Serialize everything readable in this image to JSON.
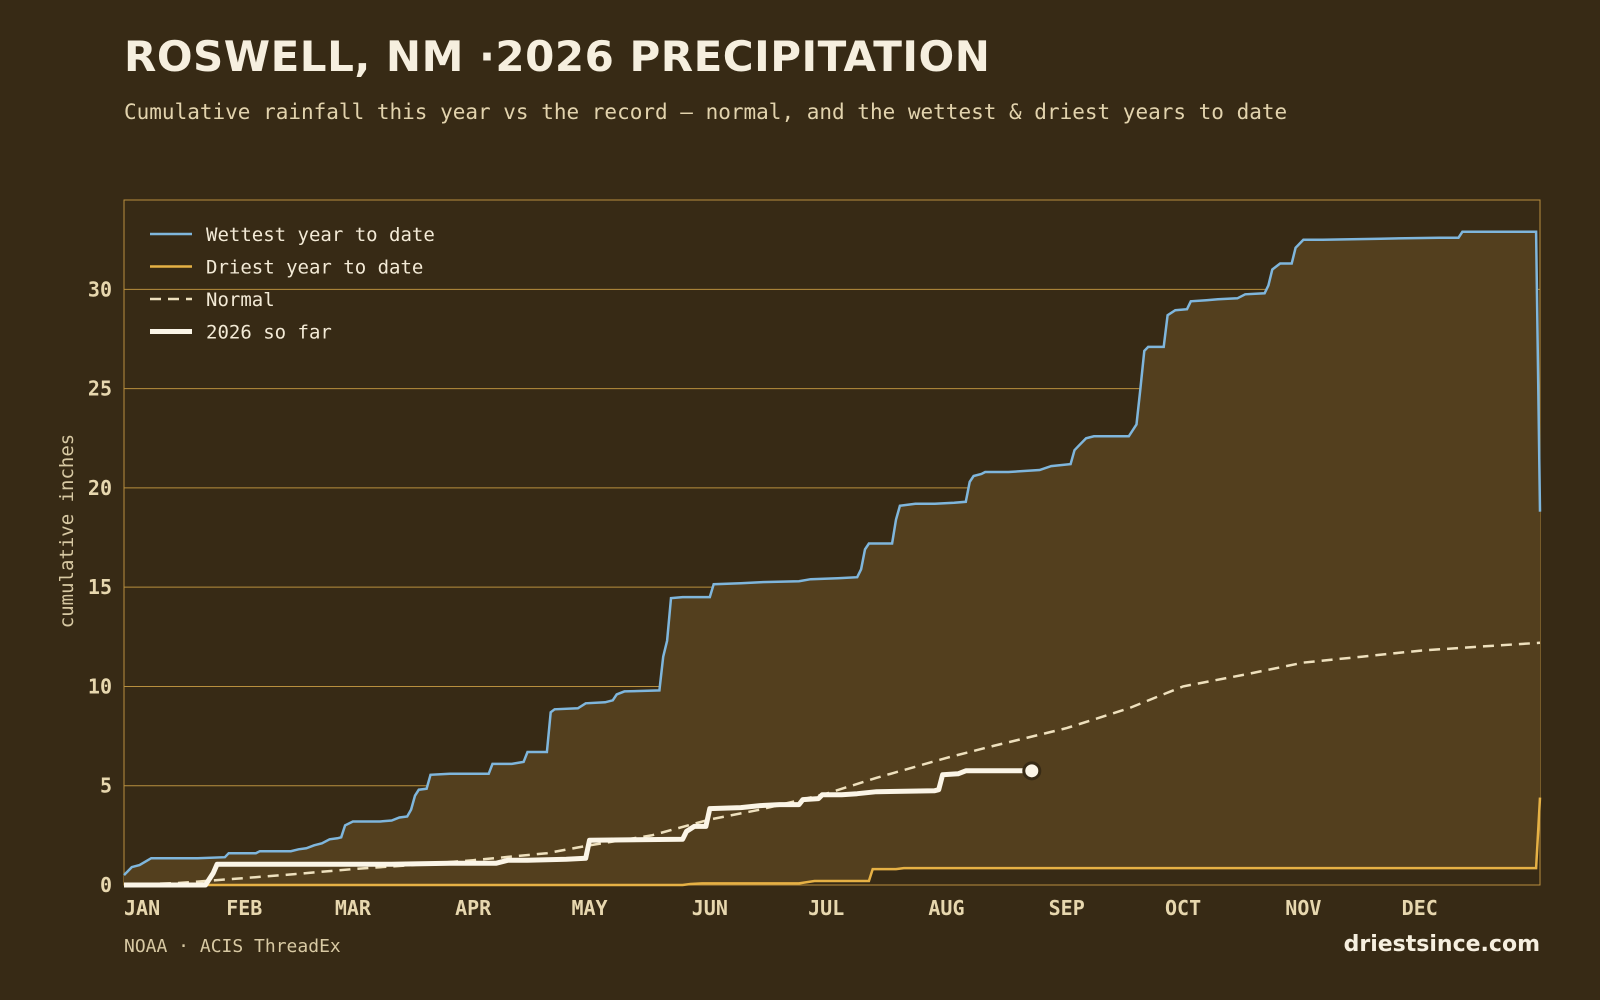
{
  "header": {
    "title": "ROSWELL, NM ·2026 PRECIPITATION",
    "subtitle": "Cumulative rainfall this year vs the record — normal, and the wettest & driest years to date"
  },
  "footer": {
    "source": "NOAA · ACIS ThreadEx",
    "brand": "driestsince.com"
  },
  "colors": {
    "background": "#372a15",
    "fill": "#533f1e",
    "grid": "#b88f3e",
    "wettest": "#7fb6dc",
    "driest": "#e6b145",
    "normal": "#eee0bd",
    "current": "#fbf5e7"
  },
  "chart_data": {
    "type": "line",
    "title": "ROSWELL, NM ·2026 PRECIPITATION",
    "ylabel": "cumulative inches",
    "xlabel": "",
    "x_unit": "day of year",
    "xlim": [
      1,
      366
    ],
    "ylim": [
      0,
      34.5
    ],
    "y_ticks": [
      0,
      5,
      10,
      15,
      20,
      25,
      30
    ],
    "x_ticks": [
      {
        "label": "JAN",
        "day": 1
      },
      {
        "label": "FEB",
        "day": 32
      },
      {
        "label": "MAR",
        "day": 60
      },
      {
        "label": "APR",
        "day": 91
      },
      {
        "label": "MAY",
        "day": 121
      },
      {
        "label": "JUN",
        "day": 152
      },
      {
        "label": "JUL",
        "day": 182
      },
      {
        "label": "AUG",
        "day": 213
      },
      {
        "label": "SEP",
        "day": 244
      },
      {
        "label": "OCT",
        "day": 274
      },
      {
        "label": "NOV",
        "day": 305
      },
      {
        "label": "DEC",
        "day": 335
      }
    ],
    "grid": "horizontal",
    "legend_position": "top-left",
    "shaded_band": "between driest and wettest year to date",
    "series": [
      {
        "name": "Wettest year to date",
        "style": "solid",
        "points": [
          [
            1,
            0.5
          ],
          [
            3,
            0.9
          ],
          [
            5,
            1.0
          ],
          [
            8,
            1.35
          ],
          [
            12,
            1.35
          ],
          [
            20,
            1.35
          ],
          [
            27,
            1.4
          ],
          [
            28,
            1.6
          ],
          [
            35,
            1.6
          ],
          [
            36,
            1.7
          ],
          [
            44,
            1.7
          ],
          [
            46,
            1.8
          ],
          [
            48,
            1.85
          ],
          [
            50,
            2.0
          ],
          [
            52,
            2.1
          ],
          [
            54,
            2.3
          ],
          [
            56,
            2.35
          ],
          [
            57,
            2.4
          ],
          [
            58,
            3.0
          ],
          [
            60,
            3.2
          ],
          [
            67,
            3.2
          ],
          [
            70,
            3.25
          ],
          [
            72,
            3.4
          ],
          [
            74,
            3.45
          ],
          [
            75,
            3.8
          ],
          [
            76,
            4.5
          ],
          [
            77,
            4.8
          ],
          [
            79,
            4.85
          ],
          [
            80,
            5.55
          ],
          [
            85,
            5.6
          ],
          [
            95,
            5.6
          ],
          [
            96,
            6.1
          ],
          [
            101,
            6.1
          ],
          [
            104,
            6.2
          ],
          [
            105,
            6.7
          ],
          [
            110,
            6.7
          ],
          [
            111,
            8.7
          ],
          [
            112,
            8.85
          ],
          [
            118,
            8.9
          ],
          [
            120,
            9.15
          ],
          [
            125,
            9.2
          ],
          [
            127,
            9.3
          ],
          [
            128,
            9.6
          ],
          [
            130,
            9.75
          ],
          [
            139,
            9.8
          ],
          [
            140,
            11.5
          ],
          [
            141,
            12.3
          ],
          [
            142,
            14.45
          ],
          [
            145,
            14.5
          ],
          [
            152,
            14.5
          ],
          [
            153,
            15.15
          ],
          [
            160,
            15.2
          ],
          [
            165,
            15.25
          ],
          [
            175,
            15.3
          ],
          [
            178,
            15.4
          ],
          [
            185,
            15.45
          ],
          [
            190,
            15.5
          ],
          [
            191,
            15.9
          ],
          [
            192,
            16.9
          ],
          [
            193,
            17.2
          ],
          [
            199,
            17.2
          ],
          [
            200,
            18.4
          ],
          [
            201,
            19.1
          ],
          [
            205,
            19.2
          ],
          [
            210,
            19.2
          ],
          [
            215,
            19.25
          ],
          [
            218,
            19.3
          ],
          [
            219,
            20.3
          ],
          [
            220,
            20.6
          ],
          [
            222,
            20.7
          ],
          [
            223,
            20.8
          ],
          [
            229,
            20.8
          ],
          [
            237,
            20.9
          ],
          [
            240,
            21.1
          ],
          [
            245,
            21.2
          ],
          [
            246,
            21.9
          ],
          [
            247,
            22.1
          ],
          [
            249,
            22.5
          ],
          [
            251,
            22.6
          ],
          [
            260,
            22.6
          ],
          [
            262,
            23.2
          ],
          [
            263,
            25.0
          ],
          [
            264,
            26.9
          ],
          [
            265,
            27.1
          ],
          [
            269,
            27.1
          ],
          [
            270,
            28.7
          ],
          [
            272,
            28.95
          ],
          [
            275,
            29.0
          ],
          [
            276,
            29.4
          ],
          [
            280,
            29.45
          ],
          [
            283,
            29.5
          ],
          [
            288,
            29.55
          ],
          [
            290,
            29.75
          ],
          [
            295,
            29.8
          ],
          [
            296,
            30.2
          ],
          [
            297,
            31.0
          ],
          [
            299,
            31.3
          ],
          [
            302,
            31.3
          ],
          [
            303,
            32.1
          ],
          [
            305,
            32.5
          ],
          [
            310,
            32.5
          ],
          [
            325,
            32.55
          ],
          [
            340,
            32.6
          ],
          [
            345,
            32.6
          ],
          [
            346,
            32.9
          ],
          [
            365,
            32.9
          ],
          [
            366,
            18.8
          ]
        ]
      },
      {
        "name": "Driest year to date",
        "style": "solid",
        "points": [
          [
            1,
            0
          ],
          [
            145,
            0
          ],
          [
            147,
            0.05
          ],
          [
            150,
            0.08
          ],
          [
            175,
            0.08
          ],
          [
            179,
            0.2
          ],
          [
            186,
            0.2
          ],
          [
            193,
            0.2
          ],
          [
            194,
            0.8
          ],
          [
            200,
            0.8
          ],
          [
            202,
            0.85
          ],
          [
            365,
            0.85
          ],
          [
            366,
            4.4
          ]
        ]
      },
      {
        "name": "Normal",
        "style": "dashed",
        "points": [
          [
            1,
            0
          ],
          [
            15,
            0.1
          ],
          [
            32,
            0.35
          ],
          [
            45,
            0.55
          ],
          [
            60,
            0.8
          ],
          [
            75,
            1.0
          ],
          [
            91,
            1.25
          ],
          [
            110,
            1.6
          ],
          [
            121,
            2.0
          ],
          [
            137,
            2.5
          ],
          [
            152,
            3.3
          ],
          [
            165,
            3.8
          ],
          [
            182,
            4.6
          ],
          [
            195,
            5.4
          ],
          [
            213,
            6.4
          ],
          [
            225,
            7.0
          ],
          [
            244,
            7.9
          ],
          [
            260,
            8.9
          ],
          [
            274,
            10.0
          ],
          [
            290,
            10.6
          ],
          [
            305,
            11.2
          ],
          [
            320,
            11.5
          ],
          [
            335,
            11.8
          ],
          [
            350,
            12.0
          ],
          [
            366,
            12.2
          ]
        ]
      },
      {
        "name": "2026 so far",
        "style": "bold",
        "points": [
          [
            1,
            0
          ],
          [
            22,
            0
          ],
          [
            24,
            0.6
          ],
          [
            25,
            1.05
          ],
          [
            70,
            1.05
          ],
          [
            85,
            1.1
          ],
          [
            97,
            1.1
          ],
          [
            100,
            1.25
          ],
          [
            105,
            1.25
          ],
          [
            115,
            1.3
          ],
          [
            120,
            1.35
          ],
          [
            121,
            2.25
          ],
          [
            145,
            2.3
          ],
          [
            146,
            2.7
          ],
          [
            148,
            2.95
          ],
          [
            151,
            2.95
          ],
          [
            152,
            3.85
          ],
          [
            160,
            3.9
          ],
          [
            165,
            4.0
          ],
          [
            170,
            4.05
          ],
          [
            175,
            4.05
          ],
          [
            176,
            4.3
          ],
          [
            180,
            4.35
          ],
          [
            181,
            4.55
          ],
          [
            186,
            4.55
          ],
          [
            190,
            4.6
          ],
          [
            195,
            4.7
          ],
          [
            210,
            4.75
          ],
          [
            211,
            4.8
          ],
          [
            212,
            5.55
          ],
          [
            216,
            5.6
          ],
          [
            218,
            5.75
          ],
          [
            228,
            5.75
          ],
          [
            235,
            5.75
          ]
        ]
      }
    ]
  }
}
